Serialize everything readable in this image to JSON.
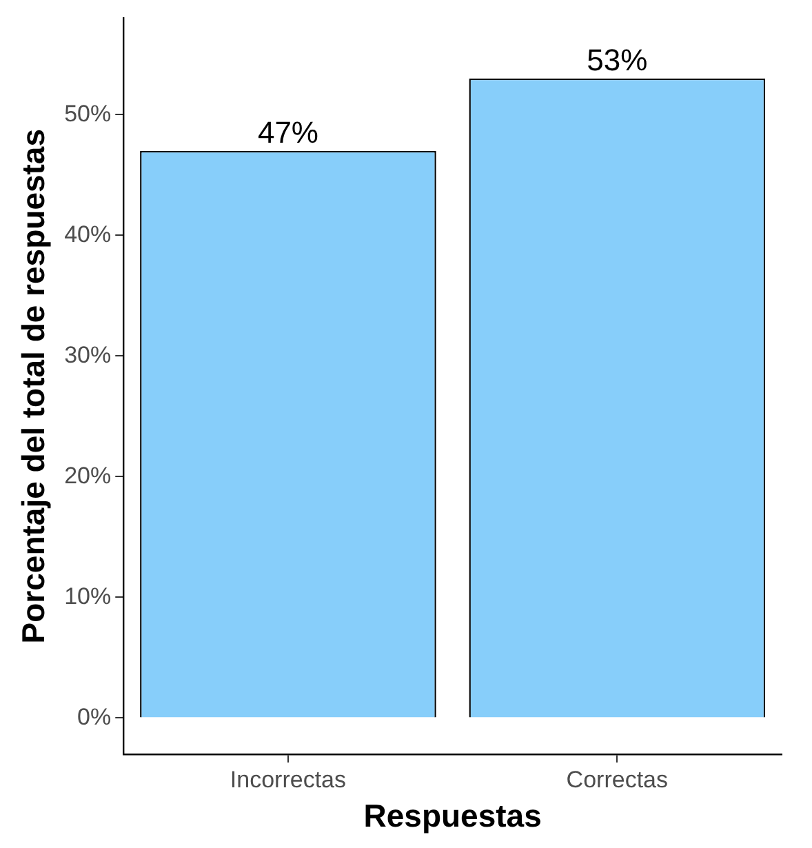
{
  "chart_data": {
    "type": "bar",
    "xlabel": "Respuestas",
    "ylabel": "Porcentaje del total de respuestas",
    "categories": [
      "Incorrectas",
      "Correctas"
    ],
    "values": [
      47,
      53
    ],
    "color": "#87cefa",
    "value_labels": [
      "47%",
      "53%"
    ],
    "ylim": [
      -3,
      58
    ],
    "yticks": [
      {
        "value": 0,
        "label": "0%"
      },
      {
        "value": 10,
        "label": "10%"
      },
      {
        "value": 20,
        "label": "20%"
      },
      {
        "value": 30,
        "label": "30%"
      },
      {
        "value": 40,
        "label": "40%"
      },
      {
        "value": 50,
        "label": "50%"
      }
    ],
    "grid": false,
    "legend": false
  }
}
